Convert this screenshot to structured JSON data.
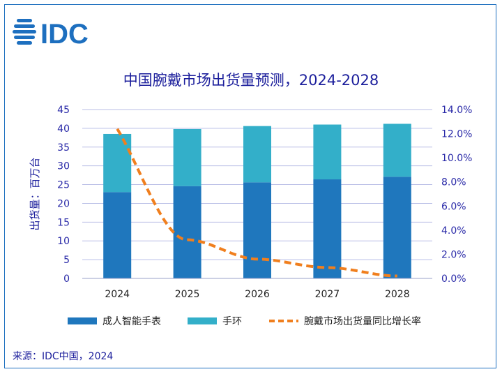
{
  "logo_text": "IDC",
  "colors": {
    "adult": "#1f77bd",
    "bracelet": "#33afc9",
    "growth": "#f07f1e",
    "axis_text": "#2a2aa8",
    "title": "#1c1f9c",
    "grid": "#b9bee6"
  },
  "source": "来源：IDC中国，2024",
  "chart_data": {
    "type": "bar",
    "stacked": true,
    "title": "中国腕戴市场出货量预测，2024-2028",
    "ylabel": "出货量：百万台",
    "categories": [
      "2024",
      "2025",
      "2026",
      "2027",
      "2028"
    ],
    "ylim": [
      0,
      45
    ],
    "yticks": [
      "0",
      "5",
      "10",
      "15",
      "20",
      "25",
      "30",
      "35",
      "40",
      "45"
    ],
    "y2lim": [
      0,
      14
    ],
    "y2ticks": [
      "0.0%",
      "2.0%",
      "4.0%",
      "6.0%",
      "8.0%",
      "10.0%",
      "12.0%",
      "14.0%"
    ],
    "series": [
      {
        "name": "成人智能手表",
        "type": "bar",
        "values": [
          23.0,
          24.6,
          25.6,
          26.4,
          27.1
        ]
      },
      {
        "name": "手环",
        "type": "bar",
        "values": [
          15.5,
          15.2,
          15.0,
          14.6,
          14.1
        ]
      },
      {
        "name": "腕戴市场出货量同比增长率",
        "type": "line",
        "axis": "right",
        "unit": "%",
        "values": [
          12.4,
          3.2,
          1.6,
          0.9,
          0.2
        ]
      }
    ],
    "legend_position": "bottom"
  }
}
